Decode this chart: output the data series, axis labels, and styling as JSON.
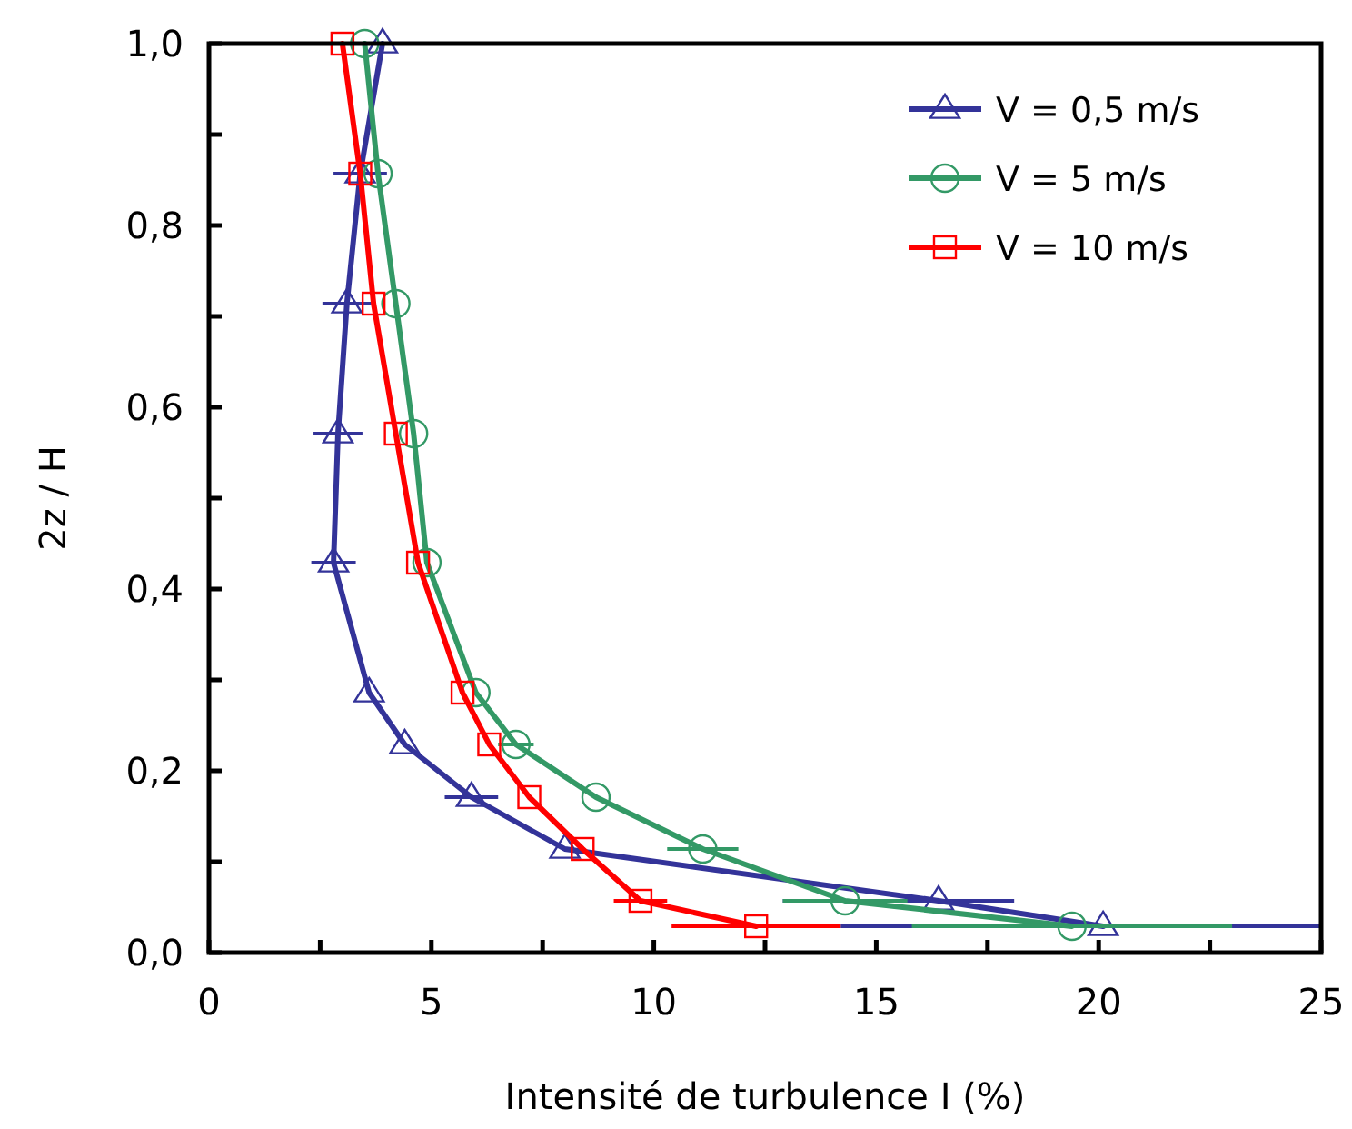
{
  "chart_data": {
    "type": "line",
    "xlabel": "Intensité de turbulence I (%)",
    "ylabel": "2z / H",
    "xlim": [
      0,
      25
    ],
    "ylim": [
      0,
      1
    ],
    "xticks": [
      0,
      {
        "value": 2.5,
        "label": null
      },
      5,
      {
        "value": 7.5,
        "label": null
      },
      10,
      {
        "value": 12.5,
        "label": null
      },
      15,
      {
        "value": 17.5,
        "label": null
      },
      20,
      {
        "value": 22.5,
        "label": null
      },
      25
    ],
    "yticks": [
      {
        "value": 0,
        "label": "0,0"
      },
      {
        "value": 0.1,
        "label": null
      },
      {
        "value": 0.2,
        "label": "0,2"
      },
      {
        "value": 0.3,
        "label": null
      },
      {
        "value": 0.4,
        "label": "0,4"
      },
      {
        "value": 0.5,
        "label": null
      },
      {
        "value": 0.6,
        "label": "0,6"
      },
      {
        "value": 0.7,
        "label": null
      },
      {
        "value": 0.8,
        "label": "0,8"
      },
      {
        "value": 0.9,
        "label": null
      },
      {
        "value": 1,
        "label": "1,0"
      }
    ],
    "grid": false,
    "legend": "top right",
    "line_style": "solid",
    "series": [
      {
        "name": "V = 0,5 m/s",
        "color": "#333399",
        "marker": "triangle",
        "x": [
          3.9,
          3.4,
          3.1,
          2.9,
          2.8,
          3.6,
          4.4,
          5.9,
          8.0,
          16.4,
          20.1
        ],
        "values": [
          1,
          0.857,
          0.714,
          0.571,
          0.429,
          0.286,
          0.229,
          0.171,
          0.114,
          0.057,
          0.029
        ],
        "xerrors": [
          null,
          0.6,
          0.55,
          0.55,
          0.5,
          null,
          null,
          0.6,
          null,
          [
            12.9,
            18.1
          ],
          [
            14.2,
            25
          ]
        ]
      },
      {
        "name": "V = 5 m/s",
        "color": "#339966",
        "marker": "circle",
        "x": [
          3.5,
          3.8,
          4.2,
          4.6,
          4.9,
          6.0,
          6.9,
          8.7,
          11.1,
          14.3,
          19.4
        ],
        "values": [
          1,
          0.857,
          0.714,
          0.571,
          0.429,
          0.286,
          0.229,
          0.171,
          0.114,
          0.057,
          0.029
        ],
        "xerrors": [
          null,
          null,
          null,
          null,
          null,
          null,
          0.4,
          null,
          0.8,
          1.4,
          3.6
        ]
      },
      {
        "name": "V = 10 m/s",
        "color": "#ff0000",
        "marker": "square",
        "x": [
          3.0,
          3.4,
          3.7,
          4.2,
          4.7,
          5.7,
          6.3,
          7.2,
          8.4,
          9.7,
          12.3
        ],
        "values": [
          1,
          0.857,
          0.714,
          0.571,
          0.429,
          0.286,
          0.229,
          0.171,
          0.114,
          0.057,
          0.029
        ],
        "xerrors": [
          null,
          null,
          null,
          null,
          null,
          null,
          null,
          null,
          null,
          0.6,
          1.9
        ]
      }
    ]
  }
}
